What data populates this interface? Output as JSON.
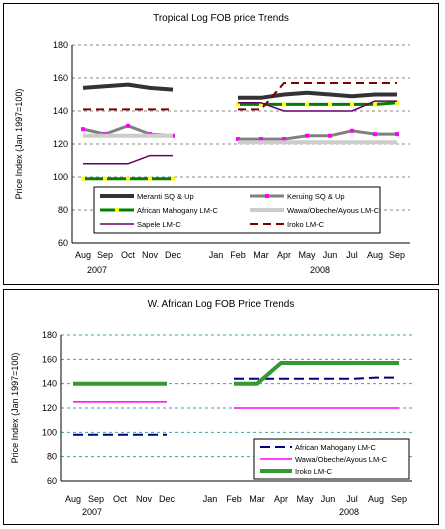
{
  "chart_data": [
    {
      "type": "line",
      "title": "Tropical Log FOB price Trends",
      "ylabel": "Price Index (Jan 1997=100)",
      "xlabel": "",
      "ylim": [
        60,
        180
      ],
      "yticks": [
        60,
        80,
        100,
        120,
        140,
        160,
        180
      ],
      "grid": true,
      "legend_position": "inside-bottom",
      "categories": [
        "Aug",
        "Sep",
        "Oct",
        "Nov",
        "Dec",
        "Jan",
        "Feb",
        "Mar",
        "Apr",
        "May",
        "Jun",
        "Jul",
        "Aug",
        "Sep"
      ],
      "year_labels": [
        "2007",
        "2008"
      ],
      "series": [
        {
          "name": "Meranti SQ & Up",
          "color": "#333333",
          "style": "thick",
          "values": [
            154,
            155,
            156,
            154,
            153,
            null,
            148,
            148,
            150,
            151,
            150,
            149,
            150,
            150
          ]
        },
        {
          "name": "Keruing SQ & Up",
          "color": "#808080",
          "marker": "#ff00ff",
          "style": "marker",
          "values": [
            129,
            126,
            131,
            126,
            125,
            null,
            123,
            123,
            123,
            125,
            125,
            128,
            126,
            126
          ]
        },
        {
          "name": "African Mahogany LM-C",
          "color": "#008000",
          "marker": "#ffff00",
          "style": "marker",
          "values": [
            99,
            99,
            99,
            99,
            99,
            null,
            144,
            144,
            144,
            144,
            144,
            144,
            144,
            145
          ]
        },
        {
          "name": "Wawa/Obeche/Ayous LM-C",
          "color": "#cccccc",
          "style": "thick",
          "values": [
            125,
            125,
            125,
            125,
            125,
            null,
            121,
            121,
            121,
            121,
            121,
            121,
            121,
            121
          ]
        },
        {
          "name": "Sapele LM-C",
          "color": "#660066",
          "style": "thin",
          "values": [
            108,
            108,
            108,
            113,
            113,
            null,
            145,
            145,
            140,
            140,
            140,
            140,
            146,
            146
          ]
        },
        {
          "name": "Iroko LM-C",
          "color": "#800000",
          "style": "dashed",
          "values": [
            141,
            141,
            141,
            141,
            141,
            null,
            141,
            141,
            157,
            157,
            157,
            157,
            157,
            157
          ]
        }
      ]
    },
    {
      "type": "line",
      "title": "W. African Log FOB Price Trends",
      "ylabel": "Price Index (Jan 1997=100)",
      "xlabel": "",
      "ylim": [
        60,
        180
      ],
      "yticks": [
        60,
        80,
        100,
        120,
        140,
        160,
        180
      ],
      "grid": true,
      "legend_position": "bottom-right",
      "categories": [
        "Aug",
        "Sep",
        "Oct",
        "Nov",
        "Dec",
        "Jan",
        "Feb",
        "Mar",
        "Apr",
        "May",
        "Jun",
        "Jul",
        "Aug",
        "Sep"
      ],
      "year_labels": [
        "2007",
        "2008"
      ],
      "series": [
        {
          "name": "African Mahogany LM-C",
          "color": "#000080",
          "style": "dashed",
          "values": [
            98,
            98,
            98,
            98,
            98,
            null,
            144,
            144,
            144,
            144,
            144,
            144,
            145,
            145
          ]
        },
        {
          "name": "Wawa/Obeche/Ayous LM-C",
          "color": "#ff00ff",
          "style": "thin",
          "values": [
            125,
            125,
            125,
            125,
            125,
            null,
            120,
            120,
            120,
            120,
            120,
            120,
            120,
            120
          ]
        },
        {
          "name": "Iroko LM-C",
          "color": "#339933",
          "style": "thick",
          "values": [
            140,
            140,
            140,
            140,
            140,
            null,
            140,
            140,
            157,
            157,
            157,
            157,
            157,
            157
          ]
        }
      ]
    }
  ]
}
